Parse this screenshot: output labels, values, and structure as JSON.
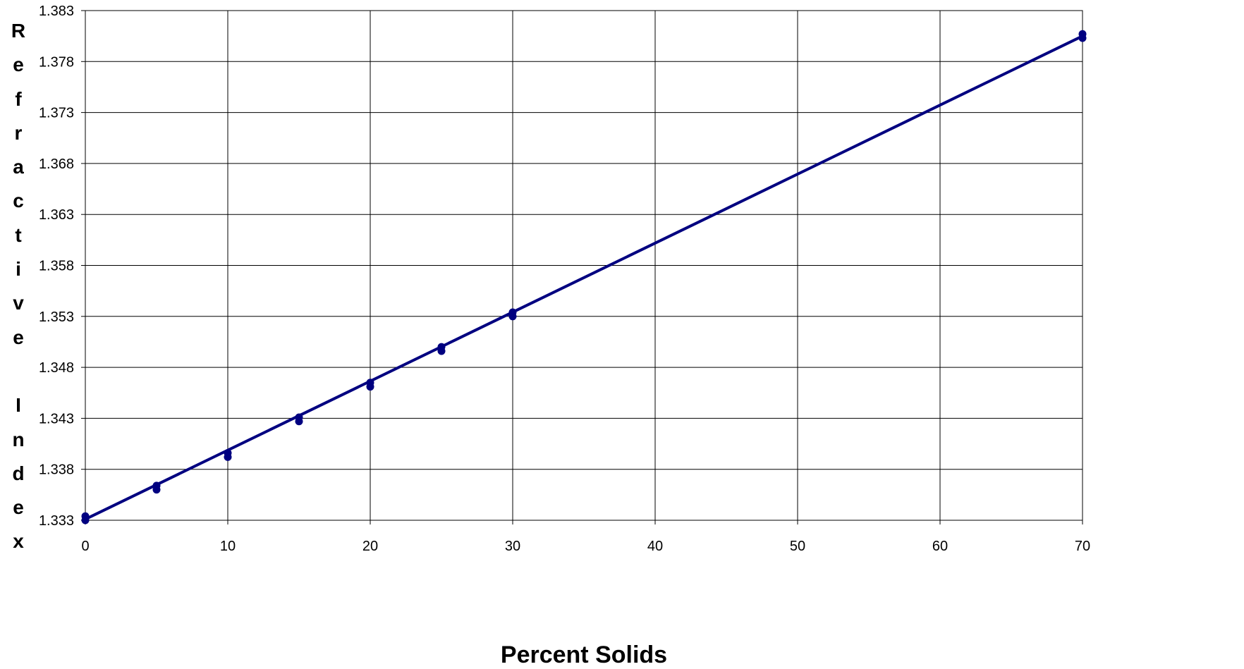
{
  "chart_data": {
    "type": "line",
    "title": "",
    "xlabel": "Percent Solids",
    "ylabel": "Refractive Index",
    "xlim": [
      0,
      70
    ],
    "ylim": [
      1.333,
      1.383
    ],
    "x_ticks": [
      "0",
      "10",
      "20",
      "30",
      "40",
      "50",
      "60",
      "70"
    ],
    "y_ticks": [
      "1.333",
      "1.338",
      "1.343",
      "1.348",
      "1.353",
      "1.358",
      "1.363",
      "1.368",
      "1.373",
      "1.378",
      "1.383"
    ],
    "grid": true,
    "legend": "none",
    "colors": {
      "series": "#000080",
      "grid": "#000000"
    },
    "series": [
      {
        "style": "markers",
        "x": [
          0,
          0,
          5,
          5,
          10,
          10,
          15,
          15,
          20,
          20,
          25,
          25,
          30,
          30,
          70,
          70
        ],
        "y": [
          1.333,
          1.3334,
          1.336,
          1.3364,
          1.3392,
          1.3396,
          1.3427,
          1.3431,
          1.3461,
          1.3465,
          1.3496,
          1.35,
          1.353,
          1.3534,
          1.3803,
          1.3807
        ]
      },
      {
        "style": "line",
        "x": [
          0,
          70
        ],
        "y": [
          1.3331,
          1.3805
        ]
      }
    ]
  }
}
